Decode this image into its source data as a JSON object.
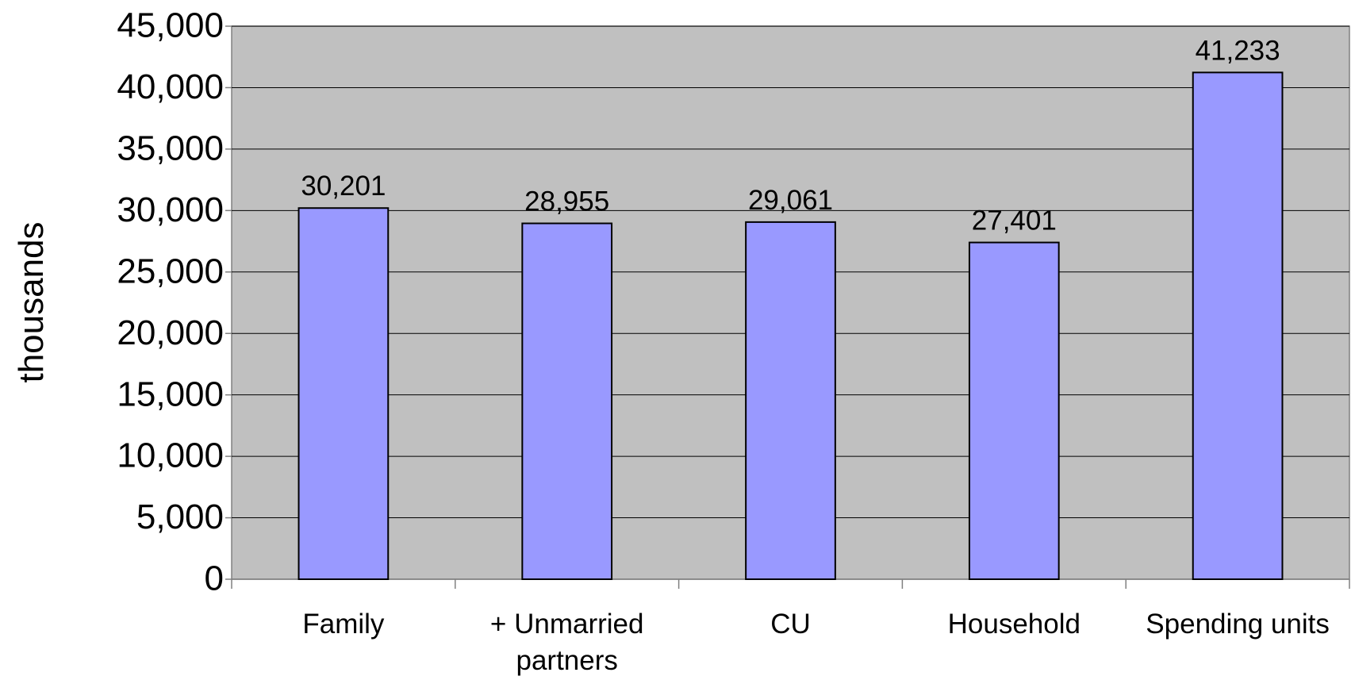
{
  "chart_data": {
    "type": "bar",
    "y_label": "thousands",
    "categories": [
      "Family",
      "+ Unmarried partners",
      "CU",
      "Household",
      "Spending units"
    ],
    "values": [
      30201,
      28955,
      29061,
      27401,
      41233
    ],
    "value_labels": [
      "30,201",
      "28,955",
      "29,061",
      "27,401",
      "41,233"
    ],
    "color": "#9999ff",
    "ylim": [
      0,
      45000
    ],
    "yticks": [
      0,
      {
        "value": 5000,
        "label": "5,000"
      },
      {
        "value": 10000,
        "label": "10,000"
      },
      {
        "value": 15000,
        "label": "15,000"
      },
      {
        "value": 20000,
        "label": "20,000"
      },
      {
        "value": 25000,
        "label": "25,000"
      },
      {
        "value": 30000,
        "label": "30,000"
      },
      {
        "value": 35000,
        "label": "35,000"
      },
      {
        "value": 40000,
        "label": "40,000"
      },
      {
        "value": 45000,
        "label": "45,000"
      }
    ],
    "grid": true
  }
}
